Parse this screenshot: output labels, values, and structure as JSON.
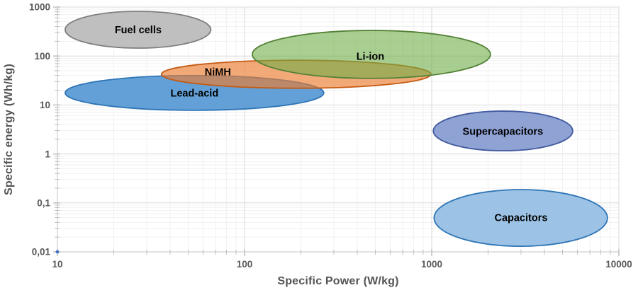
{
  "chart_data": {
    "type": "area",
    "subtype": "ragone-plot-elliptical-regions",
    "title": "",
    "xlabel": "Specific Power (W/kg)",
    "ylabel": "Specific energy (Wh/kg)",
    "x_scale": "log",
    "y_scale": "log",
    "xlim": [
      10,
      10000
    ],
    "ylim": [
      0.01,
      1000
    ],
    "x_tick_values": [
      10,
      100,
      1000,
      10000
    ],
    "x_tick_labels": [
      "10",
      "100",
      "1000",
      "10000"
    ],
    "y_tick_values": [
      1000,
      100,
      10,
      1,
      0.1,
      0.01
    ],
    "y_tick_labels": [
      "1000",
      "100",
      "10",
      "1",
      "0,1",
      "0,01"
    ],
    "grid": "major-and-minor-log",
    "legend": "none (labels inside regions)",
    "style": {
      "background": "#FFFFFF",
      "grid_major_color": "#D9D9D9",
      "grid_minor_color": "#F1F1F1",
      "axis_line_color": "#C6C6C6",
      "tick_color": "#BFBFBF",
      "tick_label_color": "#595959",
      "region_label_color": "#000000"
    },
    "series": [
      {
        "name": "Fuel cells",
        "x_range": [
          11,
          66
        ],
        "y_range": [
          145,
          820
        ],
        "label_at": [
          27,
          345
        ],
        "fill": "#BFBFBF",
        "stroke": "#7F7F7F",
        "fill_opacity": 1
      },
      {
        "name": "Lead-acid",
        "x_range": [
          11,
          265
        ],
        "y_range": [
          7.8,
          40
        ],
        "label_at": [
          54,
          17.5
        ],
        "fill": "#5B9BD5",
        "stroke": "#2E75B6",
        "fill_opacity": 0.95
      },
      {
        "name": "NiMH",
        "x_range": [
          36,
          990
        ],
        "y_range": [
          22,
          82
        ],
        "label_at": [
          72,
          48
        ],
        "fill": "#ED7D31",
        "stroke": "#C55A11",
        "fill_opacity": 0.65
      },
      {
        "name": "Li-ion",
        "x_range": [
          110,
          2060
        ],
        "y_range": [
          35,
          333
        ],
        "label_at": [
          470,
          100
        ],
        "fill": "#70AD47",
        "stroke": "#538135",
        "fill_opacity": 0.6
      },
      {
        "name": "Supercapacitors",
        "x_range": [
          1020,
          5670
        ],
        "y_range": [
          1.16,
          7.5
        ],
        "label_at": [
          2400,
          2.9
        ],
        "fill": "#8FA2D4",
        "stroke": "#41599E",
        "fill_opacity": 1
      },
      {
        "name": "Capacitors",
        "x_range": [
          1030,
          8690
        ],
        "y_range": [
          0.013,
          0.187
        ],
        "label_at": [
          3000,
          0.05
        ],
        "fill": "#9CC3E6",
        "stroke": "#2E75B6",
        "fill_opacity": 1
      }
    ],
    "origin_point": {
      "x": 10,
      "y": 0.01,
      "color": "#4472C4"
    }
  }
}
